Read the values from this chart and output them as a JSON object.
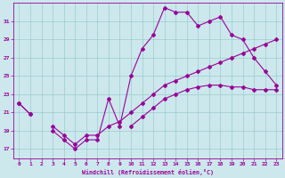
{
  "xlabel": "Windchill (Refroidissement éolien,°C)",
  "background_color": "#cce8ed",
  "grid_color": "#99cccc",
  "line_color": "#990099",
  "hours": [
    0,
    1,
    2,
    3,
    4,
    5,
    6,
    7,
    8,
    9,
    10,
    11,
    12,
    13,
    14,
    15,
    16,
    17,
    18,
    19,
    20,
    21,
    22,
    23
  ],
  "main_y": [
    22,
    20.8,
    null,
    19,
    18,
    17,
    18,
    18,
    22.5,
    19.5,
    25,
    28,
    29.5,
    32.5,
    32,
    32,
    30.5,
    31,
    31.5,
    29.5,
    29,
    27,
    25.5,
    24
  ],
  "band_y": [
    22,
    20.8,
    null,
    19.5,
    18.5,
    17.5,
    18.5,
    18.5,
    19.5,
    20,
    21,
    22,
    23,
    24,
    24.5,
    25,
    25.5,
    26,
    26.5,
    27,
    27.5,
    28,
    28.5,
    29
  ],
  "trend_y": [
    null,
    null,
    null,
    null,
    null,
    null,
    null,
    null,
    null,
    null,
    19.5,
    20.5,
    21.5,
    22.5,
    23,
    23.5,
    23.8,
    24,
    24,
    23.8,
    23.8,
    23.5,
    23.5,
    23.5
  ],
  "ylim": [
    16,
    33
  ],
  "yticks": [
    17,
    19,
    21,
    23,
    25,
    27,
    29,
    31
  ],
  "xticks": [
    0,
    1,
    2,
    3,
    4,
    5,
    6,
    7,
    8,
    9,
    10,
    11,
    12,
    13,
    14,
    15,
    16,
    17,
    18,
    19,
    20,
    21,
    22,
    23
  ]
}
